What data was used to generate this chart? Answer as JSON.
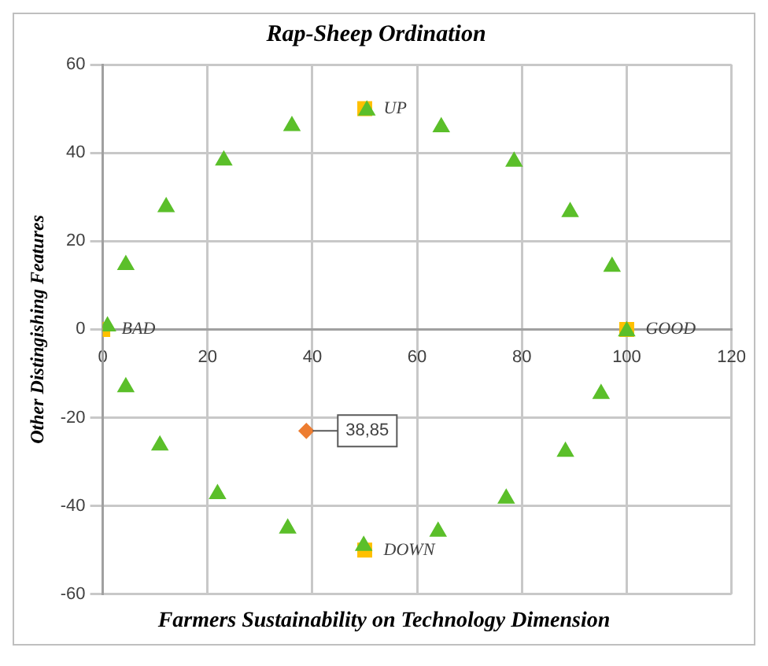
{
  "chart_data": {
    "type": "scatter",
    "title": "Rap-Sheep Ordination",
    "xlabel": "Farmers Sustainability on Technology Dimension",
    "ylabel": "Other Distingishing Features",
    "xlim": [
      0,
      120
    ],
    "xticks": [
      0,
      20,
      40,
      60,
      80,
      100,
      120
    ],
    "ylim": [
      -60,
      60
    ],
    "yticks": [
      -60,
      -40,
      -20,
      0,
      20,
      40,
      60
    ],
    "grid": true,
    "legend": false,
    "series": [
      {
        "color": "#5bbf2a",
        "marker": "triangle",
        "x": [
          0.9,
          4.4,
          12.1,
          23.1,
          36.1,
          50.4,
          64.6,
          78.5,
          89.2,
          97.2,
          100,
          95.1,
          88.3,
          77,
          64,
          49.8,
          35.3,
          21.9,
          10.9,
          4.4
        ],
        "values": [
          0.7,
          14.6,
          27.7,
          38.3,
          46.1,
          49.6,
          45.8,
          38,
          26.6,
          14.2,
          -0.4,
          -14.6,
          -27.7,
          -38.3,
          -45.8,
          -49,
          -45.1,
          -37.3,
          -26.3,
          -13.1
        ]
      },
      {
        "color": "#ffc000",
        "marker": "square",
        "x": [
          0,
          50,
          100,
          50
        ],
        "values": [
          0,
          50,
          0,
          -50
        ]
      },
      {
        "color": "#ed7d31",
        "marker": "diamond",
        "x": [
          38.85
        ],
        "values": [
          -23
        ]
      }
    ],
    "annotations": [
      {
        "text": "BAD",
        "x": 0,
        "y": 0
      },
      {
        "text": "UP",
        "x": 50,
        "y": 50
      },
      {
        "text": "GOOD",
        "x": 100,
        "y": 0
      },
      {
        "text": "DOWN",
        "x": 50,
        "y": -50
      },
      {
        "text": "38,85",
        "x": 38.85,
        "y": -23
      }
    ]
  }
}
